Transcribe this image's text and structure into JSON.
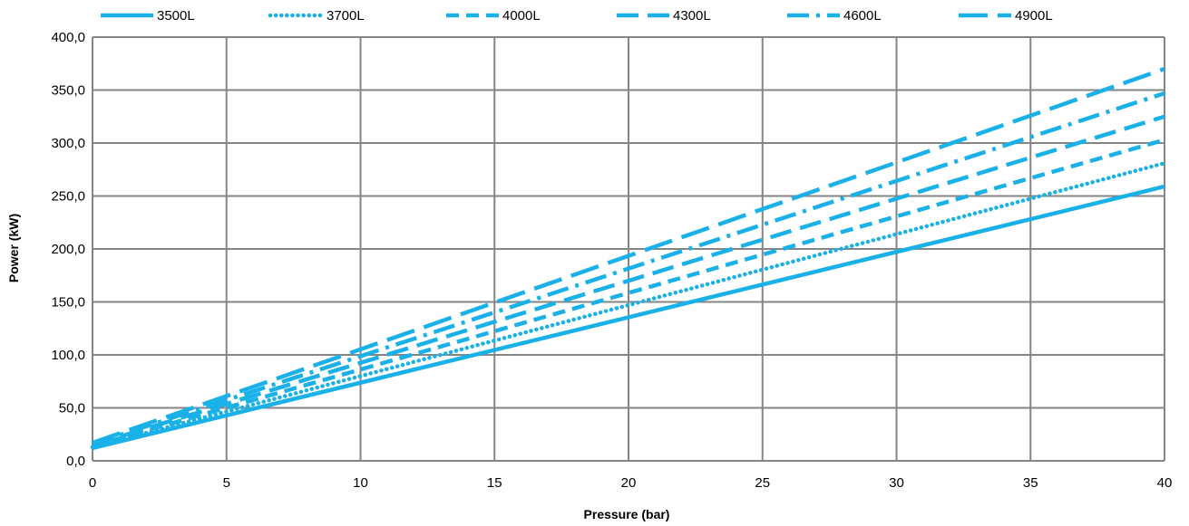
{
  "chart_data": {
    "type": "line",
    "title": "",
    "xlabel": "Pressure (bar)",
    "ylabel": "Power (kW)",
    "xlim": [
      0,
      40
    ],
    "ylim": [
      0,
      400
    ],
    "x_ticks": [
      0,
      5,
      10,
      15,
      20,
      25,
      30,
      35,
      40
    ],
    "x_tick_labels": [
      "0",
      "5",
      "10",
      "15",
      "20",
      "25",
      "30",
      "35",
      "40"
    ],
    "y_ticks": [
      0,
      50,
      100,
      150,
      200,
      250,
      300,
      350,
      400
    ],
    "y_tick_labels": [
      "0,0",
      "50,0",
      "100,0",
      "150,0",
      "200,0",
      "250,0",
      "300,0",
      "350,0",
      "400,0"
    ],
    "grid": true,
    "legend_position": "top",
    "color": "#1ab0e8",
    "series": [
      {
        "name": "3500L",
        "style": "solid",
        "x": [
          0,
          40
        ],
        "y": [
          12,
          259
        ]
      },
      {
        "name": "3700L",
        "style": "dotted",
        "x": [
          0,
          40
        ],
        "y": [
          13,
          281
        ]
      },
      {
        "name": "4000L",
        "style": "dashed",
        "x": [
          0,
          40
        ],
        "y": [
          14,
          303
        ]
      },
      {
        "name": "4300L",
        "style": "long-dash",
        "x": [
          0,
          40
        ],
        "y": [
          15,
          325
        ]
      },
      {
        "name": "4600L",
        "style": "dash-dot",
        "x": [
          0,
          40
        ],
        "y": [
          16,
          347
        ]
      },
      {
        "name": "4900L",
        "style": "long-dash-wide",
        "x": [
          0,
          40
        ],
        "y": [
          17,
          370
        ]
      }
    ]
  }
}
